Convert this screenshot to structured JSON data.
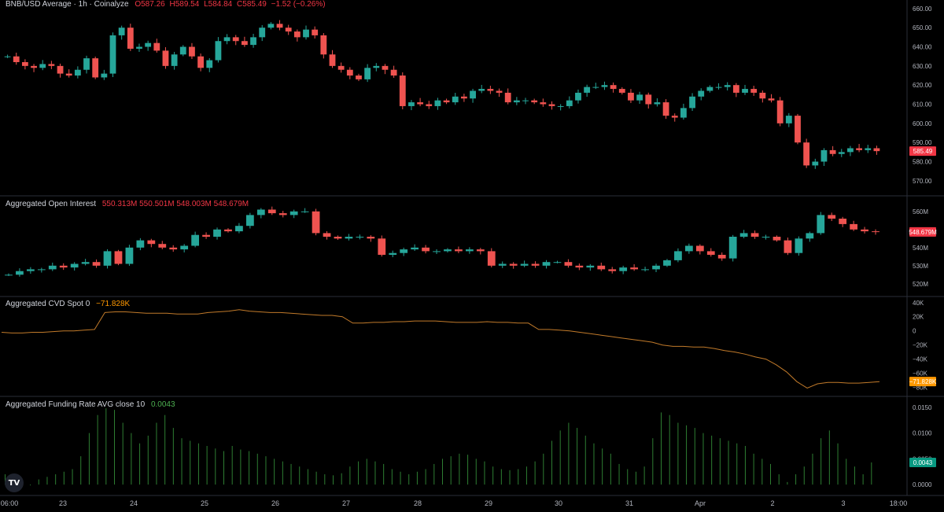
{
  "chart_data": [
    {
      "type": "candlestick",
      "title": "BNB/USD Average · 1h · Coinalyze",
      "ohlc_text": {
        "o": "O587.26",
        "h": "H589.54",
        "l": "L584.84",
        "c": "C585.49",
        "chg": "−1.52 (−0.26%)"
      },
      "last_value": "585.49",
      "ylim": [
        565,
        662
      ],
      "yticks": [
        "660.00",
        "650.00",
        "640.00",
        "630.00",
        "620.00",
        "610.00",
        "600.00",
        "590.00",
        "580.00",
        "570.00"
      ],
      "ytick_values": [
        660,
        650,
        640,
        630,
        620,
        610,
        600,
        590,
        580,
        570
      ],
      "x": [
        0,
        2,
        4,
        6,
        8,
        10,
        12,
        14,
        16,
        18,
        20,
        22,
        24,
        26,
        28,
        30,
        32,
        34,
        36,
        38,
        40,
        42,
        44,
        46,
        48,
        50,
        52,
        54,
        56,
        58,
        60,
        62,
        64,
        66,
        68,
        70,
        72,
        74,
        76,
        78,
        80,
        82,
        84,
        86,
        88,
        90,
        92,
        94,
        96,
        98,
        100,
        102,
        104,
        106,
        108,
        110,
        112,
        114,
        116,
        118,
        120,
        122,
        124,
        126,
        128,
        130,
        132,
        134,
        136,
        138,
        140,
        142,
        144,
        146,
        148,
        150,
        152,
        154,
        156,
        158,
        160,
        162,
        164,
        166,
        168,
        170,
        172,
        174,
        176,
        178,
        180,
        182,
        184,
        186,
        188,
        190,
        192,
        194,
        196,
        198,
        200,
        202,
        204,
        206,
        208,
        210,
        212,
        214,
        216,
        218,
        220,
        222,
        224,
        226,
        228,
        230,
        232,
        234,
        236,
        238,
        240,
        242,
        244,
        246,
        248,
        250,
        252,
        254,
        256,
        258,
        260,
        262,
        264,
        266,
        268,
        270,
        272,
        274,
        276,
        278
      ],
      "close": [
        635,
        632,
        630,
        629,
        631,
        630,
        626,
        625,
        628,
        634,
        624,
        626,
        646,
        650,
        639,
        640,
        642,
        638,
        630,
        636,
        640,
        635,
        629,
        633,
        643,
        645,
        643,
        641,
        645,
        650,
        652,
        650,
        648,
        645,
        649,
        646,
        636,
        630,
        628,
        625,
        623,
        629,
        630,
        628,
        625,
        609,
        611,
        610,
        609,
        612,
        611,
        614,
        613,
        617,
        618,
        617,
        616,
        611,
        612,
        612,
        611,
        610,
        609,
        609,
        612,
        616,
        619,
        619,
        620,
        618,
        616,
        612,
        615,
        610,
        611,
        604,
        603,
        608,
        614,
        617,
        619,
        619,
        620,
        616,
        618,
        616,
        613,
        612,
        600,
        604,
        590,
        578,
        580,
        586,
        584,
        585,
        587,
        586,
        587,
        585.49,
        585.49,
        585.49,
        585.49,
        585.49,
        585.49,
        585.49,
        585.49,
        585.49,
        585.49,
        585.49,
        585.49,
        585.49,
        585.49,
        585.49,
        585.49,
        585.49,
        585.49,
        585.49,
        585.49,
        585.49,
        585.49,
        585.49,
        585.49,
        585.49,
        585.49,
        585.49,
        585.49,
        585.49,
        585.49,
        585.49,
        585.49,
        585.49,
        585.49,
        585.49,
        585.49,
        585.49,
        585.49,
        585.49,
        585.49,
        585.49
      ]
    },
    {
      "type": "candlestick",
      "title": "Aggregated Open Interest",
      "values_text": "550.313M  550.501M  548.003M  548.679M",
      "last_value": "548.679M",
      "ylim": [
        516,
        566
      ],
      "yticks": [
        "560M",
        "550M",
        "540M",
        "530M",
        "520M"
      ],
      "ytick_values": [
        560,
        550,
        540,
        530,
        520
      ],
      "close": [
        525,
        527,
        528,
        528,
        530,
        529,
        531,
        532,
        530,
        538,
        531,
        540,
        544,
        542,
        540,
        539,
        541,
        547,
        546,
        550,
        549,
        552,
        558,
        561,
        559,
        558,
        560,
        560,
        548,
        546,
        545,
        546,
        546,
        545,
        536,
        537,
        539,
        540,
        538,
        538,
        539,
        538,
        539,
        538,
        530,
        531,
        530,
        531,
        530,
        532,
        532,
        530,
        529,
        530,
        528,
        527,
        529,
        528,
        528,
        530,
        533,
        538,
        541,
        538,
        536,
        534,
        546,
        548,
        546,
        546,
        544,
        537,
        545,
        548,
        558,
        556,
        553,
        550,
        549,
        548.679
      ]
    },
    {
      "type": "line",
      "title": "Aggregated CVD Spot 0",
      "values_text": "−71.828K",
      "last_value": "−71.828K",
      "ylim": [
        -85,
        42
      ],
      "yticks": [
        "40K",
        "20K",
        "0",
        "−20K",
        "−40K",
        "−60K",
        "−80K"
      ],
      "ytick_values": [
        40,
        20,
        0,
        -20,
        -40,
        -60,
        -80
      ],
      "values": [
        -2,
        -3,
        -3,
        -2,
        -2,
        -1,
        0,
        0,
        1,
        2,
        26,
        27,
        27,
        26,
        25,
        25,
        25,
        24,
        24,
        24,
        26,
        27,
        28,
        30,
        28,
        27,
        26,
        26,
        25,
        24,
        23,
        22,
        22,
        20,
        11,
        11,
        12,
        12,
        13,
        13,
        14,
        14,
        14,
        13,
        12,
        12,
        12,
        13,
        12,
        12,
        11,
        11,
        2,
        2,
        1,
        0,
        -2,
        -4,
        -6,
        -8,
        -10,
        -12,
        -14,
        -16,
        -20,
        -22,
        -22,
        -23,
        -23,
        -25,
        -28,
        -30,
        -33,
        -37,
        -40,
        -48,
        -58,
        -72,
        -81,
        -75,
        -73,
        -73,
        -74,
        -74,
        -73,
        -71.828
      ]
    },
    {
      "type": "bar",
      "title": "Aggregated Funding Rate AVG close 10",
      "values_text": "0.0043",
      "last_value": "0.0043",
      "ylim": [
        -0.0012,
        0.0162
      ],
      "yticks": [
        "0.0150",
        "0.0100",
        "0.0050",
        "0.0000"
      ],
      "ytick_values": [
        0.015,
        0.01,
        0.005,
        0.0
      ],
      "values": [
        0.002,
        0.001,
        0.0005,
        0.0,
        0.001,
        0.0015,
        0.002,
        0.0025,
        0.003,
        0.0055,
        0.01,
        0.0135,
        0.0148,
        0.0145,
        0.012,
        0.01,
        0.008,
        0.0095,
        0.012,
        0.0135,
        0.011,
        0.009,
        0.0085,
        0.008,
        0.0075,
        0.007,
        0.0065,
        0.0075,
        0.0068,
        0.0065,
        0.006,
        0.0055,
        0.005,
        0.0045,
        0.004,
        0.0035,
        0.003,
        0.0025,
        0.002,
        0.0018,
        0.0022,
        0.0035,
        0.0045,
        0.005,
        0.0045,
        0.004,
        0.003,
        0.0025,
        0.002,
        0.0025,
        0.003,
        0.004,
        0.005,
        0.0055,
        0.006,
        0.0058,
        0.005,
        0.0045,
        0.0035,
        0.003,
        0.0028,
        0.003,
        0.0035,
        0.0045,
        0.006,
        0.0085,
        0.0105,
        0.012,
        0.011,
        0.0095,
        0.008,
        0.007,
        0.006,
        0.004,
        0.003,
        0.0025,
        0.0035,
        0.009,
        0.014,
        0.0135,
        0.012,
        0.0115,
        0.011,
        0.01,
        0.0095,
        0.009,
        0.0085,
        0.008,
        0.0075,
        0.006,
        0.005,
        0.004,
        0.002,
        0.0005,
        0.002,
        0.0035,
        0.006,
        0.009,
        0.0105,
        0.008,
        0.005,
        0.0035,
        0.002,
        0.0043
      ]
    }
  ],
  "x_axis": {
    "ticks": [
      "06:00",
      "23",
      "24",
      "25",
      "26",
      "27",
      "28",
      "29",
      "30",
      "31",
      "Apr",
      "2",
      "3",
      "18:00"
    ]
  },
  "colors": {
    "up": "#26a69a",
    "down": "#ef5350",
    "cvd": "#c17a2a",
    "funding": "#2e7d32",
    "separator": "#2a2e39",
    "price_badge": "#f23645",
    "cvd_badge": "#ff9800",
    "funding_badge": "#089981"
  },
  "logo": {
    "text": "TV",
    "icon": "tradingview-logo-icon"
  }
}
